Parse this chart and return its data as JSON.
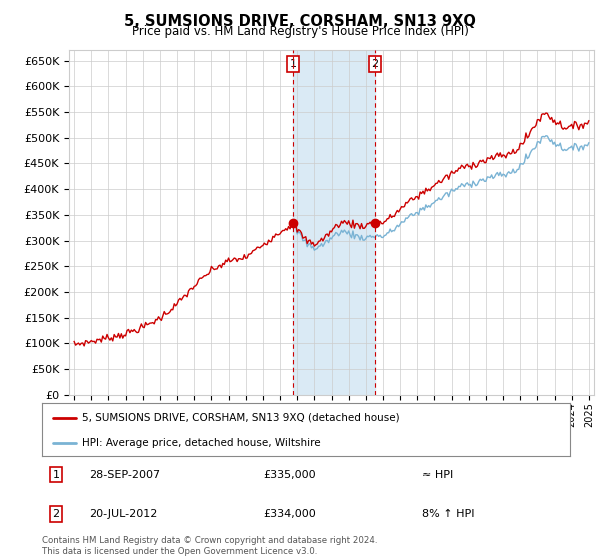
{
  "title": "5, SUMSIONS DRIVE, CORSHAM, SN13 9XQ",
  "subtitle": "Price paid vs. HM Land Registry's House Price Index (HPI)",
  "legend_line1": "5, SUMSIONS DRIVE, CORSHAM, SN13 9XQ (detached house)",
  "legend_line2": "HPI: Average price, detached house, Wiltshire",
  "annotation1_label": "1",
  "annotation1_date": "28-SEP-2007",
  "annotation1_price": "£335,000",
  "annotation1_hpi": "≈ HPI",
  "annotation2_label": "2",
  "annotation2_date": "20-JUL-2012",
  "annotation2_price": "£334,000",
  "annotation2_hpi": "8% ↑ HPI",
  "footer": "Contains HM Land Registry data © Crown copyright and database right 2024.\nThis data is licensed under the Open Government Licence v3.0.",
  "sale1_year": 2007.75,
  "sale1_price": 335000,
  "sale2_year": 2012.54,
  "sale2_price": 334000,
  "hpi_color": "#7ab3d4",
  "price_color": "#cc0000",
  "highlight_color": "#daeaf5",
  "background_color": "#ffffff",
  "grid_color": "#cccccc",
  "ylim": [
    0,
    670000
  ],
  "ytick_step": 50000,
  "xmin": 1994.7,
  "xmax": 2025.3
}
